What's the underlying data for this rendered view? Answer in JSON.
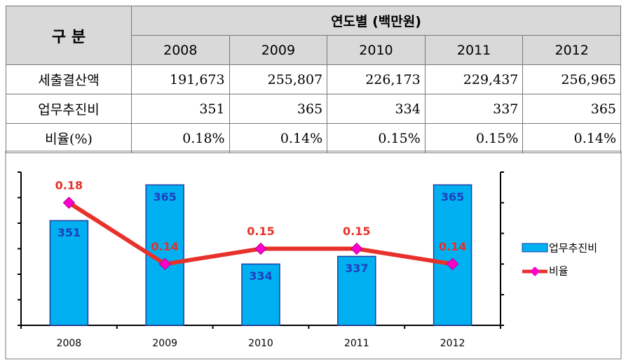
{
  "table": {
    "header": {
      "label": "구 분",
      "group": "연도별 (백만원)",
      "years": [
        "2008",
        "2009",
        "2010",
        "2011",
        "2012"
      ]
    },
    "rows": [
      [
        "세출결산액",
        "191,673",
        "255,807",
        "226,173",
        "229,437",
        "256,965"
      ],
      [
        "업무추진비",
        "351",
        "365",
        "334",
        "337",
        "365"
      ],
      [
        "비율(%)",
        "0.18%",
        "0.14%",
        "0.15%",
        "0.15%",
        "0.14%"
      ]
    ]
  },
  "chart_data": {
    "type": "bar-line",
    "categories": [
      "2008",
      "2009",
      "2010",
      "2011",
      "2012"
    ],
    "series": [
      {
        "name": "업무추진비",
        "color": "#00b0f0",
        "values": [
          351,
          365,
          334,
          337,
          365
        ]
      },
      {
        "name": "비율",
        "color": "#e8312a",
        "axis": "y2",
        "values": [
          0.18,
          0.14,
          0.15,
          0.15,
          0.14
        ]
      }
    ],
    "ylim": [
      310,
      370
    ],
    "yticks": [
      310,
      320,
      330,
      340,
      350,
      360,
      370
    ],
    "y2lim": [
      0.1,
      0.2
    ],
    "y2ticks": [
      0.1,
      0.12,
      0.14,
      0.16,
      0.18,
      0.2
    ]
  }
}
